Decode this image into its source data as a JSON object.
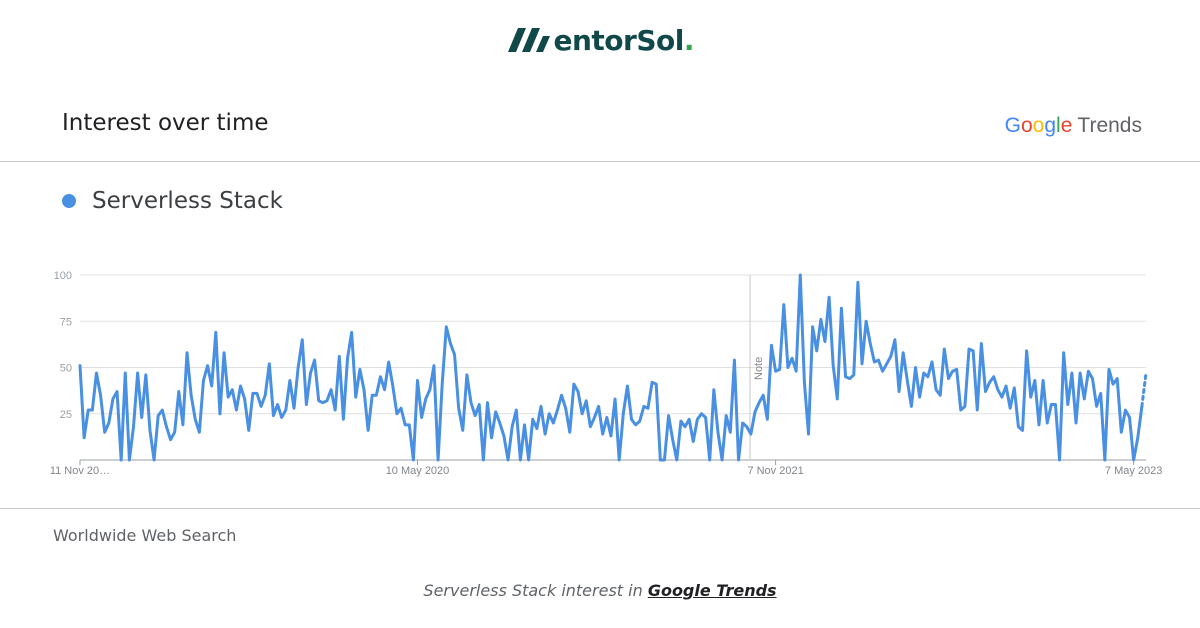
{
  "brand": {
    "logo_text": "entorSol",
    "logo_dot": "."
  },
  "header": {
    "title": "Interest over time",
    "google_letters": [
      "G",
      "o",
      "o",
      "g",
      "l",
      "e"
    ],
    "trends_label": "Trends"
  },
  "legend": {
    "term": "Serverless Stack"
  },
  "footer": {
    "scope": "Worldwide Web Search",
    "caption_prefix": "Serverless Stack interest in ",
    "caption_link": "Google Trends"
  },
  "colors": {
    "series": "#4a90e2",
    "brand": "#11494a",
    "brand_accent": "#2ba84a"
  },
  "chart_data": {
    "type": "line",
    "ylim": [
      0,
      100
    ],
    "y_ticks": [
      25,
      50,
      75,
      100
    ],
    "x_tick_labels": [
      "11 Nov 20…",
      "10 May 2020",
      "7 Nov 2021",
      "7 May 2023"
    ],
    "annotation": "Note",
    "grid": true,
    "series": [
      {
        "name": "Serverless Stack",
        "values": [
          51,
          12,
          27,
          27,
          47,
          35,
          15,
          20,
          33,
          37,
          0,
          47,
          0,
          18,
          47,
          23,
          46,
          16,
          0,
          24,
          27,
          18,
          11,
          15,
          37,
          19,
          58,
          35,
          22,
          15,
          43,
          51,
          40,
          69,
          25,
          58,
          34,
          38,
          27,
          40,
          33,
          16,
          36,
          36,
          29,
          35,
          52,
          24,
          30,
          23,
          27,
          43,
          28,
          50,
          65,
          30,
          47,
          54,
          32,
          31,
          32,
          38,
          27,
          56,
          22,
          55,
          69,
          34,
          49,
          38,
          16,
          35,
          35,
          45,
          38,
          53,
          40,
          25,
          28,
          19,
          19,
          0,
          43,
          23,
          33,
          38,
          51,
          0,
          41,
          72,
          63,
          57,
          28,
          16,
          46,
          31,
          24,
          30,
          0,
          31,
          12,
          26,
          20,
          13,
          0,
          18,
          27,
          0,
          19,
          0,
          22,
          17,
          29,
          14,
          25,
          20,
          27,
          35,
          28,
          15,
          41,
          37,
          25,
          32,
          18,
          23,
          29,
          14,
          23,
          13,
          33,
          0,
          25,
          40,
          22,
          19,
          21,
          29,
          28,
          42,
          41,
          0,
          0,
          24,
          11,
          0,
          21,
          18,
          22,
          10,
          22,
          25,
          23,
          0,
          38,
          15,
          0,
          24,
          15,
          54,
          0,
          20,
          18,
          14,
          26,
          31,
          35,
          22,
          62,
          48,
          49,
          84,
          50,
          55,
          48,
          100,
          42,
          14,
          72,
          59,
          76,
          64,
          88,
          51,
          33,
          82,
          45,
          44,
          46,
          96,
          52,
          75,
          63,
          53,
          54,
          48,
          52,
          56,
          65,
          37,
          58,
          43,
          29,
          50,
          34,
          47,
          45,
          53,
          38,
          35,
          60,
          44,
          48,
          49,
          27,
          29,
          60,
          59,
          27,
          63,
          37,
          42,
          45,
          38,
          34,
          40,
          28,
          39,
          18,
          16,
          59,
          34,
          43,
          19,
          43,
          20,
          30,
          30,
          0,
          58,
          30,
          47,
          20,
          47,
          33,
          48,
          44,
          29,
          36,
          0,
          49,
          41,
          44,
          15,
          27,
          23,
          0,
          12,
          29
        ]
      }
    ],
    "partial_tail": [
      29,
      47
    ]
  }
}
